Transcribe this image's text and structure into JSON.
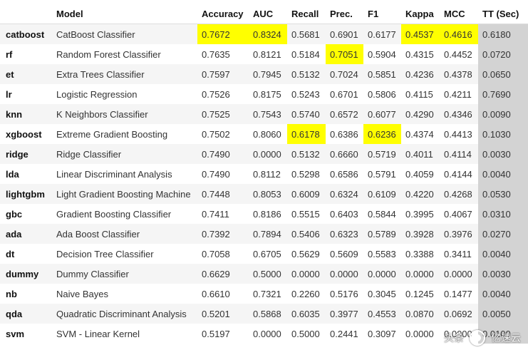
{
  "table": {
    "headers": [
      "",
      "Model",
      "Accuracy",
      "AUC",
      "Recall",
      "Prec.",
      "F1",
      "Kappa",
      "MCC",
      "TT (Sec)"
    ],
    "rows": [
      {
        "id": "catboost",
        "cells": [
          "catboost",
          "CatBoost Classifier",
          "0.7672",
          "0.8324",
          "0.5681",
          "0.6901",
          "0.6177",
          "0.4537",
          "0.4616",
          "0.6180"
        ]
      },
      {
        "id": "rf",
        "cells": [
          "rf",
          "Random Forest Classifier",
          "0.7635",
          "0.8121",
          "0.5184",
          "0.7051",
          "0.5904",
          "0.4315",
          "0.4452",
          "0.0720"
        ]
      },
      {
        "id": "et",
        "cells": [
          "et",
          "Extra Trees Classifier",
          "0.7597",
          "0.7945",
          "0.5132",
          "0.7024",
          "0.5851",
          "0.4236",
          "0.4378",
          "0.0650"
        ]
      },
      {
        "id": "lr",
        "cells": [
          "lr",
          "Logistic Regression",
          "0.7526",
          "0.8175",
          "0.5243",
          "0.6701",
          "0.5806",
          "0.4115",
          "0.4211",
          "0.7690"
        ]
      },
      {
        "id": "knn",
        "cells": [
          "knn",
          "K Neighbors Classifier",
          "0.7525",
          "0.7543",
          "0.5740",
          "0.6572",
          "0.6077",
          "0.4290",
          "0.4346",
          "0.0090"
        ]
      },
      {
        "id": "xgboost",
        "cells": [
          "xgboost",
          "Extreme Gradient Boosting",
          "0.7502",
          "0.8060",
          "0.6178",
          "0.6386",
          "0.6236",
          "0.4374",
          "0.4413",
          "0.1030"
        ]
      },
      {
        "id": "ridge",
        "cells": [
          "ridge",
          "Ridge Classifier",
          "0.7490",
          "0.0000",
          "0.5132",
          "0.6660",
          "0.5719",
          "0.4011",
          "0.4114",
          "0.0030"
        ]
      },
      {
        "id": "lda",
        "cells": [
          "lda",
          "Linear Discriminant Analysis",
          "0.7490",
          "0.8112",
          "0.5298",
          "0.6586",
          "0.5791",
          "0.4059",
          "0.4144",
          "0.0040"
        ]
      },
      {
        "id": "lightgbm",
        "cells": [
          "lightgbm",
          "Light Gradient Boosting Machine",
          "0.7448",
          "0.8053",
          "0.6009",
          "0.6324",
          "0.6109",
          "0.4220",
          "0.4268",
          "0.0530"
        ]
      },
      {
        "id": "gbc",
        "cells": [
          "gbc",
          "Gradient Boosting Classifier",
          "0.7411",
          "0.8186",
          "0.5515",
          "0.6403",
          "0.5844",
          "0.3995",
          "0.4067",
          "0.0310"
        ]
      },
      {
        "id": "ada",
        "cells": [
          "ada",
          "Ada Boost Classifier",
          "0.7392",
          "0.7894",
          "0.5406",
          "0.6323",
          "0.5789",
          "0.3928",
          "0.3976",
          "0.0270"
        ]
      },
      {
        "id": "dt",
        "cells": [
          "dt",
          "Decision Tree Classifier",
          "0.7058",
          "0.6705",
          "0.5629",
          "0.5609",
          "0.5583",
          "0.3388",
          "0.3411",
          "0.0040"
        ]
      },
      {
        "id": "dummy",
        "cells": [
          "dummy",
          "Dummy Classifier",
          "0.6629",
          "0.5000",
          "0.0000",
          "0.0000",
          "0.0000",
          "0.0000",
          "0.0000",
          "0.0030"
        ]
      },
      {
        "id": "nb",
        "cells": [
          "nb",
          "Naive Bayes",
          "0.6610",
          "0.7321",
          "0.2260",
          "0.5176",
          "0.3045",
          "0.1245",
          "0.1477",
          "0.0040"
        ]
      },
      {
        "id": "qda",
        "cells": [
          "qda",
          "Quadratic Discriminant Analysis",
          "0.5201",
          "0.5868",
          "0.6035",
          "0.3977",
          "0.4553",
          "0.0870",
          "0.0692",
          "0.0050"
        ]
      },
      {
        "id": "svm",
        "cells": [
          "svm",
          "SVM - Linear Kernel",
          "0.5197",
          "0.0000",
          "0.5000",
          "0.2441",
          "0.3097",
          "0.0000",
          "0.0000",
          "0.0100"
        ]
      }
    ],
    "highlights": [
      [
        0,
        2
      ],
      [
        0,
        3
      ],
      [
        0,
        7
      ],
      [
        0,
        8
      ],
      [
        1,
        5
      ],
      [
        5,
        4
      ],
      [
        5,
        6
      ]
    ]
  },
  "colors": {
    "highlight": "#ffff00",
    "tt_column": "#d3d3d3",
    "stripe": "#f5f5f5"
  },
  "watermark": {
    "left_text": "头条",
    "right_text": "亿速云"
  }
}
